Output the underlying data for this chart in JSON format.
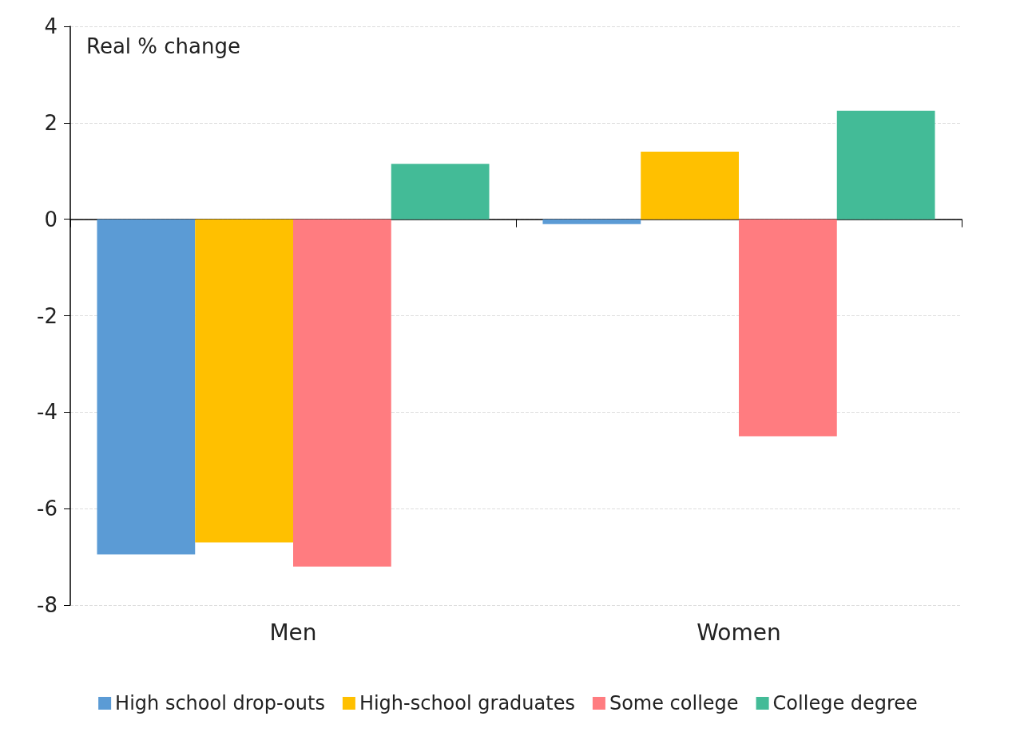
{
  "chart_data": {
    "type": "bar",
    "ylabel": "Real % change",
    "categories": [
      "Men",
      "Women"
    ],
    "series": [
      {
        "name": "High school drop-outs",
        "color": "#5b9bd5",
        "values": [
          -6.95,
          -0.1
        ]
      },
      {
        "name": "High-school graduates",
        "color": "#ffc000",
        "values": [
          -6.7,
          1.4
        ]
      },
      {
        "name": "Some college",
        "color": "#ff7c80",
        "values": [
          -7.2,
          -4.5
        ]
      },
      {
        "name": "College degree",
        "color": "#43bb97",
        "values": [
          1.15,
          2.25
        ]
      }
    ],
    "ylim": [
      -8,
      4
    ],
    "yticks": [
      -8,
      -6,
      -4,
      -2,
      0,
      2,
      4
    ],
    "grid": "y",
    "legend": "bottom"
  }
}
